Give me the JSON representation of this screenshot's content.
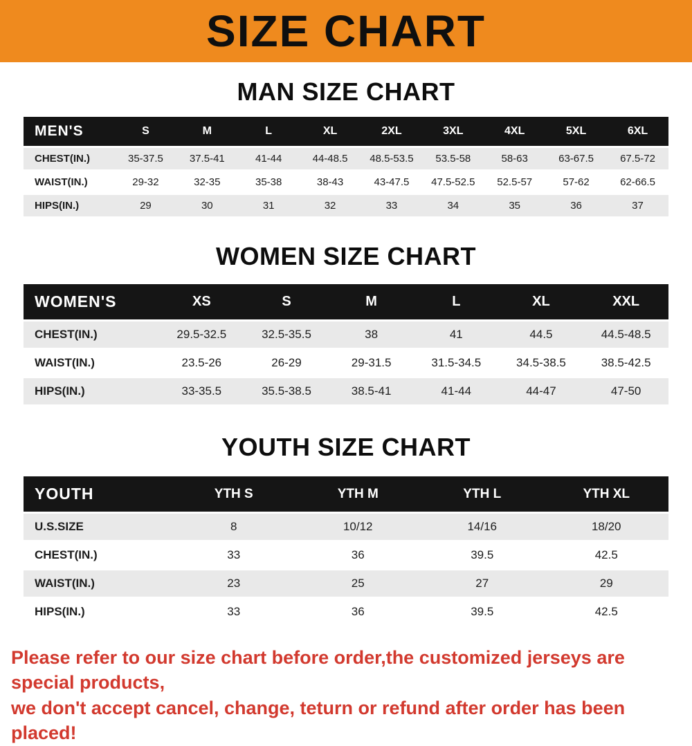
{
  "banner": {
    "title": "SIZE CHART",
    "bg_color": "#ef8a1e"
  },
  "colors": {
    "header_bar": "#151515",
    "row_shade": "#e9e9e9",
    "disclaimer_text": "#d2392e"
  },
  "chart_data": [
    {
      "type": "table",
      "title": "MAN SIZE CHART",
      "header": [
        "MEN'S",
        "S",
        "M",
        "L",
        "XL",
        "2XL",
        "3XL",
        "4XL",
        "5XL",
        "6XL"
      ],
      "rows": [
        [
          "CHEST(IN.)",
          "35-37.5",
          "37.5-41",
          "41-44",
          "44-48.5",
          "48.5-53.5",
          "53.5-58",
          "58-63",
          "63-67.5",
          "67.5-72"
        ],
        [
          "WAIST(IN.)",
          "29-32",
          "32-35",
          "35-38",
          "38-43",
          "43-47.5",
          "47.5-52.5",
          "52.5-57",
          "57-62",
          "62-66.5"
        ],
        [
          "HIPS(IN.)",
          "29",
          "30",
          "31",
          "32",
          "33",
          "34",
          "35",
          "36",
          "37"
        ]
      ]
    },
    {
      "type": "table",
      "title": "WOMEN SIZE CHART",
      "header": [
        "WOMEN'S",
        "XS",
        "S",
        "M",
        "L",
        "XL",
        "XXL"
      ],
      "rows": [
        [
          "CHEST(IN.)",
          "29.5-32.5",
          "32.5-35.5",
          "38",
          "41",
          "44.5",
          "44.5-48.5"
        ],
        [
          "WAIST(IN.)",
          "23.5-26",
          "26-29",
          "29-31.5",
          "31.5-34.5",
          "34.5-38.5",
          "38.5-42.5"
        ],
        [
          "HIPS(IN.)",
          "33-35.5",
          "35.5-38.5",
          "38.5-41",
          "41-44",
          "44-47",
          "47-50"
        ]
      ]
    },
    {
      "type": "table",
      "title": "YOUTH SIZE CHART",
      "header": [
        "YOUTH",
        "YTH S",
        "YTH M",
        "YTH L",
        "YTH XL"
      ],
      "rows": [
        [
          "U.S.SIZE",
          "8",
          "10/12",
          "14/16",
          "18/20"
        ],
        [
          "CHEST(IN.)",
          "33",
          "36",
          "39.5",
          "42.5"
        ],
        [
          "WAIST(IN.)",
          "23",
          "25",
          "27",
          "29"
        ],
        [
          "HIPS(IN.)",
          "33",
          "36",
          "39.5",
          "42.5"
        ]
      ]
    }
  ],
  "disclaimer": {
    "lines": [
      "Please refer to our size chart before order,the customized jerseys are special products,",
      "we don't accept cancel, change, teturn or refund after order has been placed!"
    ]
  }
}
